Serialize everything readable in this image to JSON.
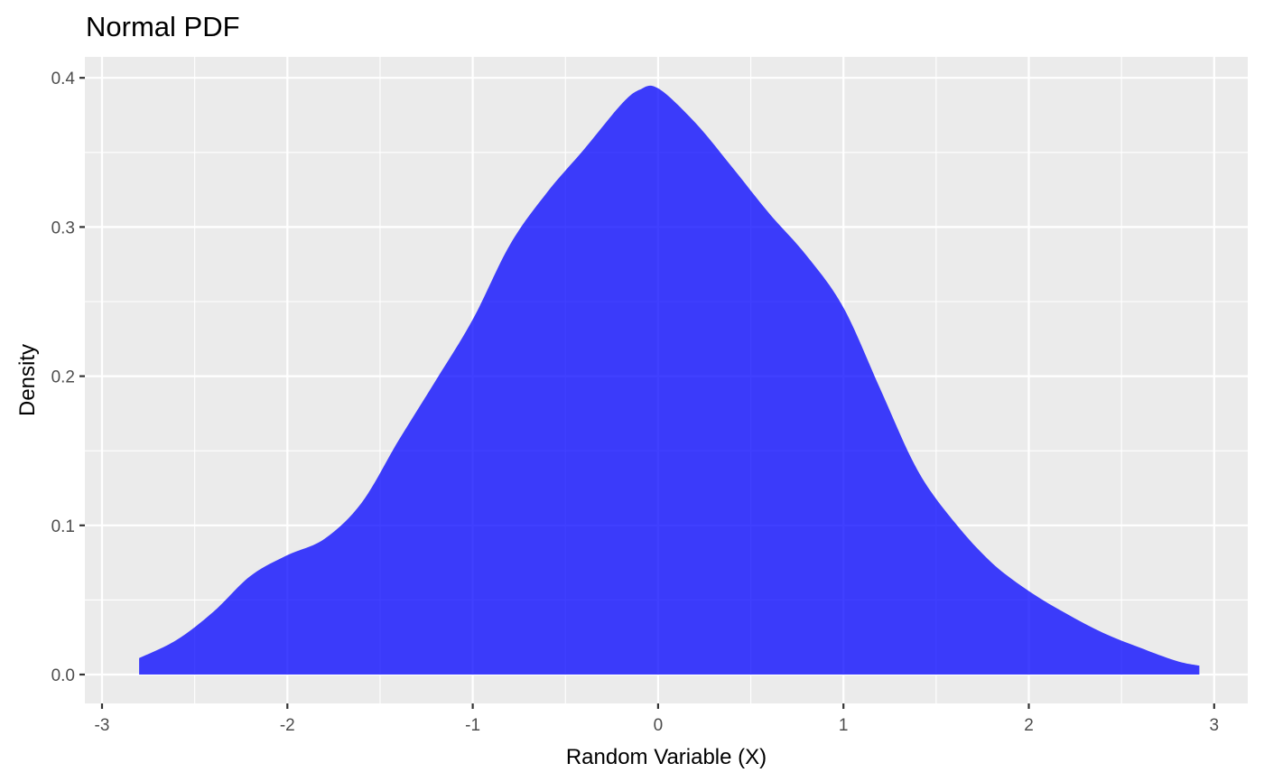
{
  "chart_data": {
    "type": "area",
    "title": "Normal PDF",
    "xlabel": "Random Variable (X)",
    "ylabel": "Density",
    "xlim": [
      -3.1,
      3.2
    ],
    "ylim": [
      -0.02,
      0.415
    ],
    "x_ticks": [
      -3,
      -2,
      -1,
      0,
      1,
      2,
      3
    ],
    "x_tick_labels": [
      "-3",
      "-2",
      "-1",
      "0",
      "1",
      "2",
      "3"
    ],
    "y_ticks": [
      0.0,
      0.1,
      0.2,
      0.3,
      0.4
    ],
    "y_tick_labels": [
      "0.0",
      "0.1",
      "0.2",
      "0.3",
      "0.4"
    ],
    "grid": true,
    "background": "#ebebeb",
    "grid_color": "#ffffff",
    "series": [
      {
        "color": "#0000ff",
        "opacity": 0.75,
        "x": [
          -2.8,
          -2.6,
          -2.4,
          -2.2,
          -2.0,
          -1.8,
          -1.6,
          -1.4,
          -1.2,
          -1.0,
          -0.8,
          -0.6,
          -0.4,
          -0.2,
          -0.1,
          0.0,
          0.2,
          0.4,
          0.6,
          0.8,
          1.0,
          1.2,
          1.4,
          1.6,
          1.8,
          2.0,
          2.2,
          2.4,
          2.6,
          2.8,
          2.92
        ],
        "y": [
          0.011,
          0.023,
          0.042,
          0.066,
          0.08,
          0.091,
          0.115,
          0.157,
          0.197,
          0.238,
          0.288,
          0.323,
          0.352,
          0.382,
          0.392,
          0.393,
          0.37,
          0.34,
          0.309,
          0.281,
          0.246,
          0.191,
          0.137,
          0.102,
          0.075,
          0.056,
          0.041,
          0.028,
          0.018,
          0.009,
          0.006
        ]
      }
    ]
  }
}
